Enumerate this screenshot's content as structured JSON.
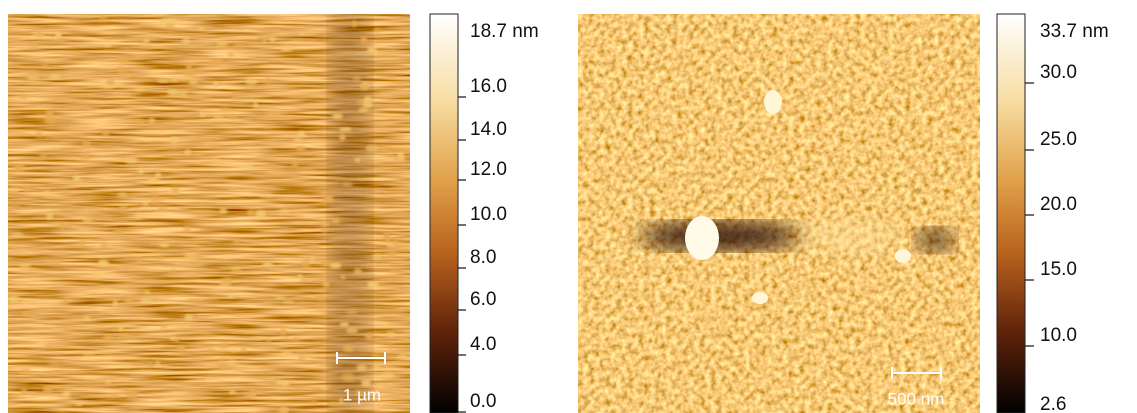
{
  "panels": [
    {
      "scale_bar_label": "1 µm",
      "colorbar": {
        "labels": [
          "18.7 nm",
          "16.0",
          "14.0",
          "12.0",
          "10.0",
          "8.0",
          "6.0",
          "4.0",
          "0.0"
        ]
      }
    },
    {
      "scale_bar_label": "500 nm",
      "colorbar": {
        "labels": [
          "33.7 nm",
          "30.0",
          "25.0",
          "20.0",
          "15.0",
          "10.0",
          "2.6"
        ]
      }
    }
  ]
}
